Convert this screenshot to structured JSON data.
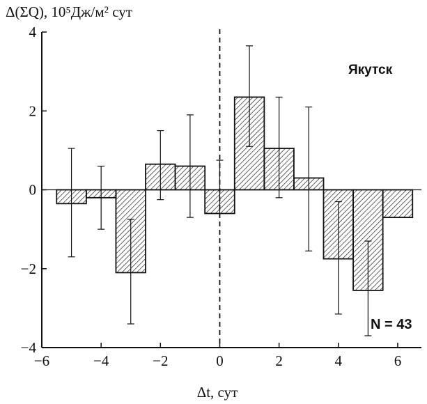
{
  "chart_data": {
    "type": "bar",
    "x_label": "Δt, сут",
    "y_label": "Δ(ΣQ), 10⁵Дж/м² сут",
    "station": "Якутск",
    "n_label": "N = 43",
    "xlim": [
      -6,
      6.8
    ],
    "ylim": [
      -4,
      4
    ],
    "x_ticks": [
      -6,
      -4,
      -2,
      0,
      2,
      4,
      6
    ],
    "y_ticks": [
      -4,
      -2,
      0,
      2,
      4
    ],
    "x_tick_labels": [
      "−6",
      "−4",
      "−2",
      "0",
      "2",
      "4",
      "6"
    ],
    "y_tick_labels": [
      "−4",
      "−2",
      "0",
      "2",
      "4"
    ],
    "bar_width": 1,
    "x": [
      -5,
      -4,
      -3,
      -2,
      -1,
      0,
      1,
      2,
      3,
      4,
      5,
      6
    ],
    "values": [
      -0.35,
      -0.2,
      -2.1,
      0.65,
      0.6,
      -0.6,
      2.35,
      1.05,
      0.3,
      -1.75,
      -2.55,
      -0.7
    ],
    "error_low": [
      -1.7,
      -1.0,
      -3.4,
      -0.25,
      -0.7,
      null,
      1.1,
      -0.2,
      -1.55,
      -3.15,
      -3.7,
      null
    ],
    "error_high": [
      1.05,
      0.6,
      -0.75,
      1.5,
      1.9,
      0.75,
      3.65,
      2.35,
      2.1,
      -0.3,
      -1.3,
      null
    ],
    "zero_line_x": 0,
    "colors": {
      "bar_stroke": "#111111",
      "hatch": "#111111",
      "background": "#ffffff"
    }
  }
}
